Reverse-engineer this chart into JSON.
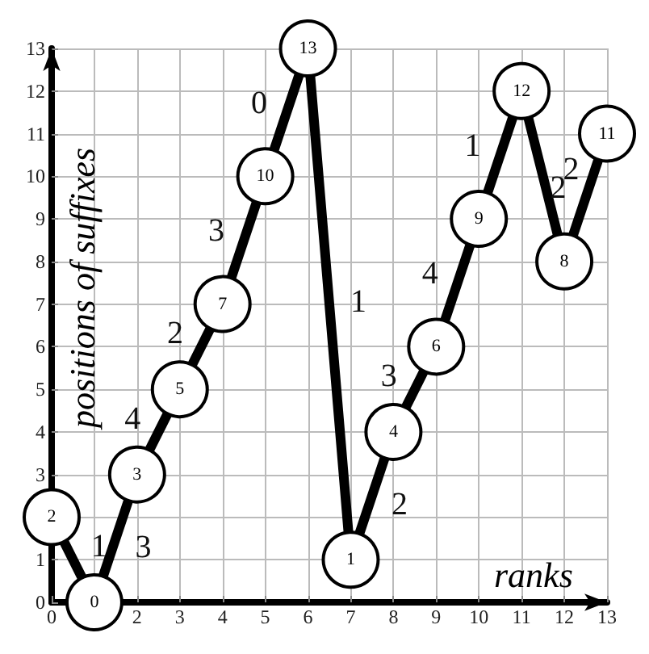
{
  "chart_data": {
    "type": "line",
    "xlabel": "ranks",
    "ylabel": "positions of suffixes",
    "x": [
      0,
      1,
      2,
      3,
      4,
      5,
      6,
      7,
      8,
      9,
      10,
      11,
      12,
      13
    ],
    "series": [
      {
        "color": "#000000",
        "values": [
          2,
          0,
          3,
          5,
          7,
          10,
          13,
          1,
          4,
          6,
          9,
          12,
          8,
          11
        ]
      }
    ],
    "data_labels": true,
    "marker": "circle",
    "line_style": "solid",
    "grid": true,
    "xlim": [
      0,
      13
    ],
    "ylim": [
      0,
      13
    ],
    "xticks": [
      0,
      {
        "value": 1,
        "label": null
      },
      2,
      3,
      4,
      5,
      6,
      7,
      8,
      9,
      10,
      11,
      12,
      13
    ],
    "yticks": [
      0,
      1,
      {
        "value": 2,
        "label": null
      },
      3,
      4,
      5,
      6,
      7,
      8,
      9,
      10,
      11,
      12,
      13
    ],
    "annotations": [
      {
        "text": "1",
        "x": 0.5,
        "y": 1
      },
      {
        "text": "3",
        "x": 1.5,
        "y": 1.5
      },
      {
        "text": "4",
        "x": 2.5,
        "y": 4
      },
      {
        "text": "2",
        "x": 3.5,
        "y": 6
      },
      {
        "text": "3",
        "x": 4.5,
        "y": 8.5
      },
      {
        "text": "0",
        "x": 5.5,
        "y": 11.5
      },
      {
        "text": "1",
        "x": 6.5,
        "y": 7
      },
      {
        "text": "2",
        "x": 7.5,
        "y": 2.5
      },
      {
        "text": "3",
        "x": 8.5,
        "y": 5
      },
      {
        "text": "4",
        "x": 9.5,
        "y": 7.5
      },
      {
        "text": "1",
        "x": 10.5,
        "y": 10.5
      },
      {
        "text": "2",
        "x": 11.5,
        "y": 10
      },
      {
        "text": "2",
        "x": 12.5,
        "y": 9.5
      }
    ]
  }
}
